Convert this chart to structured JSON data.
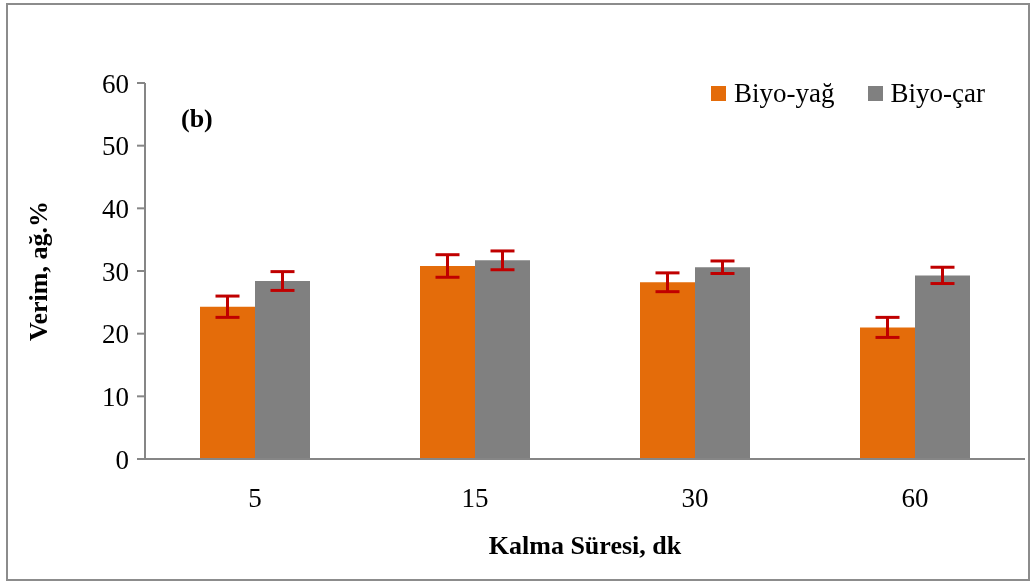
{
  "chart_data": {
    "type": "bar",
    "xlabel": "Kalma Süresi, dk",
    "ylabel": "Verim, ağ.%",
    "annotations": [
      "(b)"
    ],
    "categories": [
      "5",
      "15",
      "30",
      "60"
    ],
    "series": [
      {
        "name": "Biyo-yağ",
        "color": "#e46c0a",
        "values": [
          24.3,
          30.8,
          28.2,
          21.0
        ],
        "errors": [
          1.7,
          1.8,
          1.5,
          1.6
        ]
      },
      {
        "name": "Biyo-çar",
        "color": "#808080",
        "values": [
          28.4,
          31.7,
          30.6,
          29.3
        ],
        "errors": [
          1.5,
          1.5,
          1.0,
          1.3
        ]
      }
    ],
    "ylim": [
      0,
      60
    ],
    "yticks": [
      0,
      10,
      20,
      30,
      40,
      50,
      60
    ],
    "legend": "top right"
  }
}
